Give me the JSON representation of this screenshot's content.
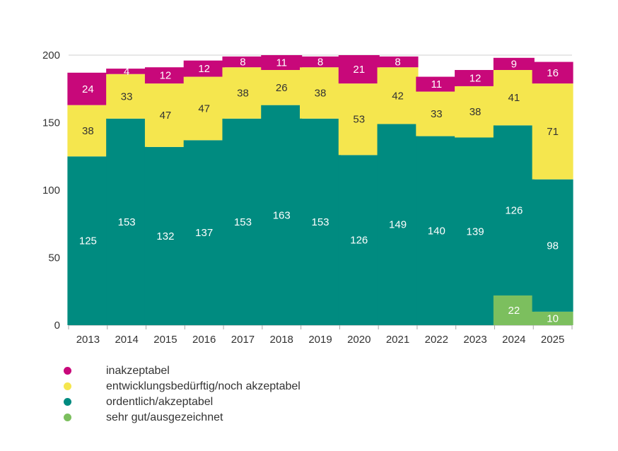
{
  "chart_data": {
    "type": "bar",
    "stacked": true,
    "categories": [
      "2013",
      "2014",
      "2015",
      "2016",
      "2017",
      "2018",
      "2019",
      "2020",
      "2021",
      "2022",
      "2023",
      "2024",
      "2025"
    ],
    "series": [
      {
        "name": "sehr gut/ausgezeichnet",
        "color": "#7cbf5e",
        "label_color": "#ffffff",
        "values": [
          0,
          0,
          0,
          0,
          0,
          0,
          0,
          0,
          0,
          0,
          0,
          22,
          10
        ]
      },
      {
        "name": "ordentlich/akzeptabel",
        "color": "#008b80",
        "label_color": "#ffffff",
        "values": [
          125,
          153,
          132,
          137,
          153,
          163,
          153,
          126,
          149,
          140,
          139,
          126,
          98
        ]
      },
      {
        "name": "entwicklungsbedürftig/noch akzeptabel",
        "color": "#f5e64e",
        "label_color": "#333333",
        "values": [
          38,
          33,
          47,
          47,
          38,
          26,
          38,
          53,
          42,
          33,
          38,
          41,
          71
        ]
      },
      {
        "name": "inakzeptabel",
        "color": "#c8087a",
        "label_color": "#ffffff",
        "values": [
          24,
          4,
          12,
          12,
          8,
          11,
          8,
          21,
          8,
          11,
          12,
          9,
          16
        ]
      }
    ],
    "ylim": [
      0,
      200
    ],
    "yticks": [
      0,
      50,
      100,
      150,
      200
    ],
    "grid": true,
    "legend_position": "bottom-left"
  },
  "legend": {
    "items": [
      {
        "label": "inakzeptabel",
        "color": "#c8087a"
      },
      {
        "label": "entwicklungsbedürftig/noch akzeptabel",
        "color": "#f5e64e"
      },
      {
        "label": "ordentlich/akzeptabel",
        "color": "#008b80"
      },
      {
        "label": "sehr gut/ausgezeichnet",
        "color": "#7cbf5e"
      }
    ]
  }
}
